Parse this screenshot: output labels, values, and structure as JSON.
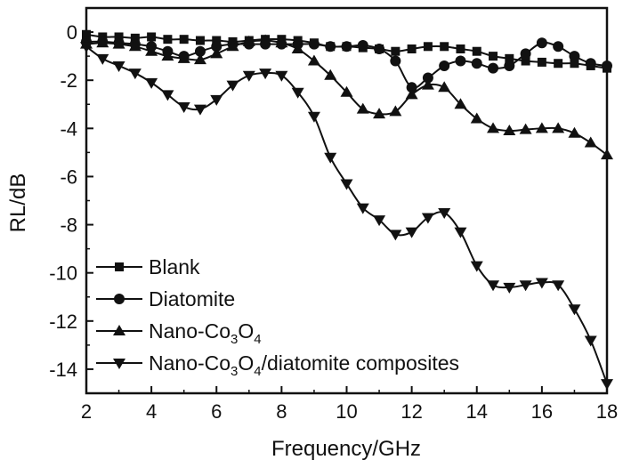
{
  "chart_data": {
    "type": "line",
    "xlabel": "Frequency/GHz",
    "ylabel": "RL/dB",
    "xlim": [
      2,
      18
    ],
    "ylim": [
      -15,
      1
    ],
    "xticks": [
      2,
      4,
      6,
      8,
      10,
      12,
      14,
      16,
      18
    ],
    "yticks": [
      0,
      -2,
      -4,
      -6,
      -8,
      -10,
      -12,
      -14
    ],
    "grid": false,
    "legend_position": "bottom-left",
    "series": [
      {
        "name": "Blank",
        "name_parts": [
          {
            "t": "Blank",
            "sub": false
          }
        ],
        "marker": "square",
        "x": [
          2,
          2.5,
          3,
          3.5,
          4,
          4.5,
          5,
          5.5,
          6,
          6.5,
          7,
          7.5,
          8,
          8.5,
          9,
          9.5,
          10,
          10.5,
          11,
          11.5,
          12,
          12.5,
          13,
          13.5,
          14,
          14.5,
          15,
          15.5,
          16,
          16.5,
          17,
          17.5,
          18
        ],
        "y": [
          -0.1,
          -0.2,
          -0.2,
          -0.25,
          -0.2,
          -0.3,
          -0.3,
          -0.35,
          -0.35,
          -0.4,
          -0.35,
          -0.3,
          -0.3,
          -0.35,
          -0.45,
          -0.6,
          -0.6,
          -0.65,
          -0.7,
          -0.8,
          -0.7,
          -0.6,
          -0.6,
          -0.7,
          -0.8,
          -1.0,
          -1.1,
          -1.2,
          -1.25,
          -1.3,
          -1.3,
          -1.4,
          -1.5
        ]
      },
      {
        "name": "Diatomite",
        "name_parts": [
          {
            "t": "Diatomite",
            "sub": false
          }
        ],
        "marker": "circle",
        "x": [
          2,
          2.5,
          3,
          3.5,
          4,
          4.5,
          5,
          5.5,
          6,
          6.5,
          7,
          7.5,
          8,
          8.5,
          9,
          9.5,
          10,
          10.5,
          11,
          11.5,
          12,
          12.5,
          13,
          13.5,
          14,
          14.5,
          15,
          15.5,
          16,
          16.5,
          17,
          17.5,
          18
        ],
        "y": [
          -0.4,
          -0.4,
          -0.45,
          -0.5,
          -0.6,
          -0.8,
          -1.0,
          -0.8,
          -0.6,
          -0.5,
          -0.5,
          -0.5,
          -0.5,
          -0.5,
          -0.5,
          -0.6,
          -0.6,
          -0.55,
          -0.7,
          -1.2,
          -2.3,
          -1.9,
          -1.4,
          -1.2,
          -1.3,
          -1.5,
          -1.4,
          -0.9,
          -0.45,
          -0.6,
          -1.0,
          -1.3,
          -1.4
        ]
      },
      {
        "name": "Nano-Co3O4",
        "name_parts": [
          {
            "t": "Nano-Co",
            "sub": false
          },
          {
            "t": "3",
            "sub": true
          },
          {
            "t": "O",
            "sub": false
          },
          {
            "t": "4",
            "sub": true
          }
        ],
        "marker": "triangle-up",
        "x": [
          2,
          2.5,
          3,
          3.5,
          4,
          4.5,
          5,
          5.5,
          6,
          6.5,
          7,
          7.5,
          8,
          8.5,
          9,
          9.5,
          10,
          10.5,
          11,
          11.5,
          12,
          12.5,
          13,
          13.5,
          14,
          14.5,
          15,
          15.5,
          16,
          16.5,
          17,
          17.5,
          18
        ],
        "y": [
          -0.5,
          -0.45,
          -0.5,
          -0.6,
          -0.8,
          -1.0,
          -1.1,
          -1.15,
          -0.9,
          -0.6,
          -0.4,
          -0.35,
          -0.45,
          -0.7,
          -1.2,
          -1.8,
          -2.5,
          -3.2,
          -3.4,
          -3.3,
          -2.6,
          -2.2,
          -2.3,
          -3.0,
          -3.6,
          -4.0,
          -4.1,
          -4.05,
          -4.0,
          -4.0,
          -4.2,
          -4.6,
          -5.1
        ]
      },
      {
        "name": "Nano-Co3O4/diatomite composites",
        "name_parts": [
          {
            "t": "Nano-Co",
            "sub": false
          },
          {
            "t": "3",
            "sub": true
          },
          {
            "t": "O",
            "sub": false
          },
          {
            "t": "4",
            "sub": true
          },
          {
            "t": "/diatomite composites",
            "sub": false
          }
        ],
        "marker": "triangle-down",
        "x": [
          2,
          2.5,
          3,
          3.5,
          4,
          4.5,
          5,
          5.5,
          6,
          6.5,
          7,
          7.5,
          8,
          8.5,
          9,
          9.5,
          10,
          10.5,
          11,
          11.5,
          12,
          12.5,
          13,
          13.5,
          14,
          14.5,
          15,
          15.5,
          16,
          16.5,
          17,
          17.5,
          18
        ],
        "y": [
          -0.6,
          -1.1,
          -1.4,
          -1.7,
          -2.1,
          -2.6,
          -3.1,
          -3.2,
          -2.8,
          -2.2,
          -1.8,
          -1.7,
          -1.8,
          -2.5,
          -3.5,
          -5.2,
          -6.3,
          -7.3,
          -7.8,
          -8.4,
          -8.3,
          -7.7,
          -7.5,
          -8.3,
          -9.7,
          -10.5,
          -10.6,
          -10.5,
          -10.4,
          -10.5,
          -11.5,
          -12.8,
          -14.6
        ]
      }
    ]
  }
}
